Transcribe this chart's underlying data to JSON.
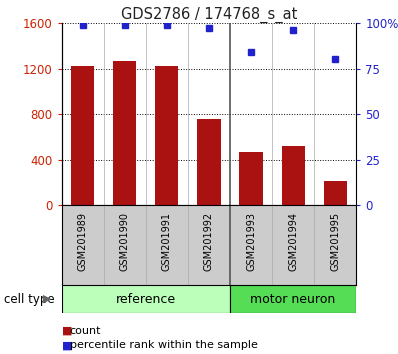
{
  "title": "GDS2786 / 174768_s_at",
  "samples": [
    "GSM201989",
    "GSM201990",
    "GSM201991",
    "GSM201992",
    "GSM201993",
    "GSM201994",
    "GSM201995"
  ],
  "counts": [
    1220,
    1270,
    1220,
    760,
    470,
    520,
    215
  ],
  "percentiles": [
    99,
    99,
    99,
    97,
    84,
    96,
    80
  ],
  "bar_color": "#aa1111",
  "dot_color": "#2222cc",
  "ylim_left": [
    0,
    1600
  ],
  "ylim_right": [
    0,
    100
  ],
  "yticks_left": [
    0,
    400,
    800,
    1200,
    1600
  ],
  "yticks_right": [
    0,
    25,
    50,
    75,
    100
  ],
  "yticklabels_right": [
    "0",
    "25",
    "50",
    "75",
    "100%"
  ],
  "group_labels": [
    "reference",
    "motor neuron"
  ],
  "ref_color": "#bbffbb",
  "mn_color": "#55dd55",
  "cell_type_label": "cell type",
  "legend_count_label": "count",
  "legend_pct_label": "percentile rank within the sample",
  "tick_bg_color": "#cccccc",
  "plot_bg": "#ffffff",
  "title_color": "#222222",
  "left_axis_color": "#cc2200",
  "right_axis_color": "#2222cc"
}
